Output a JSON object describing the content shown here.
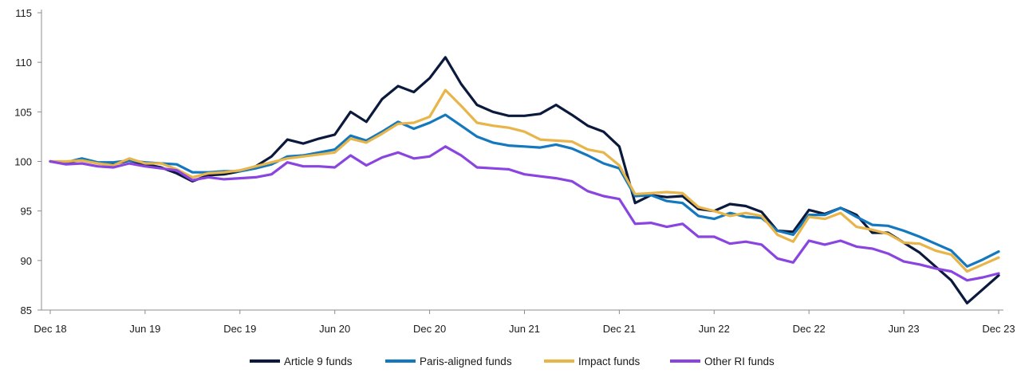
{
  "chart_data": {
    "type": "line",
    "title": "",
    "xlabel": "",
    "ylabel": "",
    "ylim": [
      85,
      115
    ],
    "yticks": [
      85,
      90,
      95,
      100,
      105,
      110,
      115
    ],
    "xtick_labels": [
      "Dec 18",
      "Jun 19",
      "Dec 19",
      "Jun 20",
      "Dec 20",
      "Jun 21",
      "Dec 21",
      "Jun 22",
      "Dec 22",
      "Jun 23",
      "Dec 23"
    ],
    "xtick_index": [
      0,
      6,
      12,
      18,
      24,
      30,
      36,
      42,
      48,
      54,
      60
    ],
    "x_start": "Dec 18",
    "x_end": "Dec 23",
    "frequency": "monthly",
    "grid": false,
    "legend_position": "bottom",
    "series": [
      {
        "name": "Article 9 funds",
        "color": "#0b1a3c",
        "values": [
          100.0,
          99.8,
          100.2,
          99.8,
          99.7,
          100.1,
          99.7,
          99.4,
          98.8,
          98.0,
          98.6,
          98.7,
          99.0,
          99.5,
          100.5,
          102.2,
          101.8,
          102.3,
          102.7,
          105.0,
          104.0,
          106.3,
          107.6,
          107.0,
          108.4,
          110.5,
          107.8,
          105.7,
          105.0,
          104.6,
          104.6,
          104.8,
          105.7,
          104.7,
          103.6,
          103.0,
          101.5,
          95.8,
          96.6,
          96.4,
          96.5,
          95.2,
          95.0,
          95.7,
          95.5,
          94.9,
          93.0,
          92.9,
          95.1,
          94.7,
          95.3,
          94.6,
          92.8,
          92.8,
          91.8,
          90.8,
          89.4,
          88.0,
          85.7,
          87.1,
          88.5
        ]
      },
      {
        "name": "Paris-aligned funds",
        "color": "#1478be",
        "values": [
          100.0,
          99.9,
          100.3,
          99.9,
          99.9,
          100.1,
          99.9,
          99.8,
          99.7,
          98.9,
          98.9,
          99.0,
          99.0,
          99.3,
          99.7,
          100.5,
          100.6,
          100.9,
          101.2,
          102.6,
          102.1,
          103.0,
          104.0,
          103.3,
          103.9,
          104.7,
          103.6,
          102.5,
          101.9,
          101.6,
          101.5,
          101.4,
          101.7,
          101.3,
          100.6,
          99.8,
          99.3,
          96.5,
          96.6,
          96.0,
          95.8,
          94.5,
          94.2,
          94.8,
          94.4,
          94.3,
          93.0,
          92.6,
          94.6,
          94.6,
          95.3,
          94.4,
          93.6,
          93.5,
          93.0,
          92.4,
          91.7,
          91.0,
          89.4,
          90.1,
          90.9
        ]
      },
      {
        "name": "Impact funds",
        "color": "#e8b54a",
        "values": [
          100.0,
          100.0,
          100.1,
          99.8,
          99.6,
          100.3,
          99.8,
          99.8,
          99.2,
          98.4,
          98.8,
          98.9,
          99.1,
          99.5,
          99.9,
          100.3,
          100.5,
          100.7,
          100.9,
          102.3,
          101.9,
          102.8,
          103.8,
          103.9,
          104.5,
          107.2,
          105.6,
          103.9,
          103.6,
          103.4,
          103.0,
          102.2,
          102.1,
          102.0,
          101.2,
          100.9,
          99.6,
          96.7,
          96.8,
          96.9,
          96.8,
          95.4,
          95.0,
          94.5,
          94.8,
          94.5,
          92.6,
          91.9,
          94.4,
          94.2,
          94.8,
          93.4,
          93.1,
          92.7,
          91.8,
          91.7,
          91.0,
          90.6,
          88.9,
          89.6,
          90.3
        ]
      },
      {
        "name": "Other RI funds",
        "color": "#8a45e0",
        "values": [
          100.0,
          99.7,
          99.8,
          99.5,
          99.4,
          99.8,
          99.5,
          99.3,
          99.1,
          98.1,
          98.4,
          98.2,
          98.3,
          98.4,
          98.7,
          99.9,
          99.5,
          99.5,
          99.4,
          100.6,
          99.6,
          100.4,
          100.9,
          100.3,
          100.5,
          101.5,
          100.6,
          99.4,
          99.3,
          99.2,
          98.7,
          98.5,
          98.3,
          98.0,
          97.0,
          96.5,
          96.2,
          93.7,
          93.8,
          93.4,
          93.7,
          92.4,
          92.4,
          91.7,
          91.9,
          91.6,
          90.2,
          89.8,
          92.0,
          91.6,
          92.0,
          91.4,
          91.2,
          90.7,
          89.9,
          89.6,
          89.2,
          88.9,
          88.0,
          88.3,
          88.7
        ]
      }
    ]
  }
}
